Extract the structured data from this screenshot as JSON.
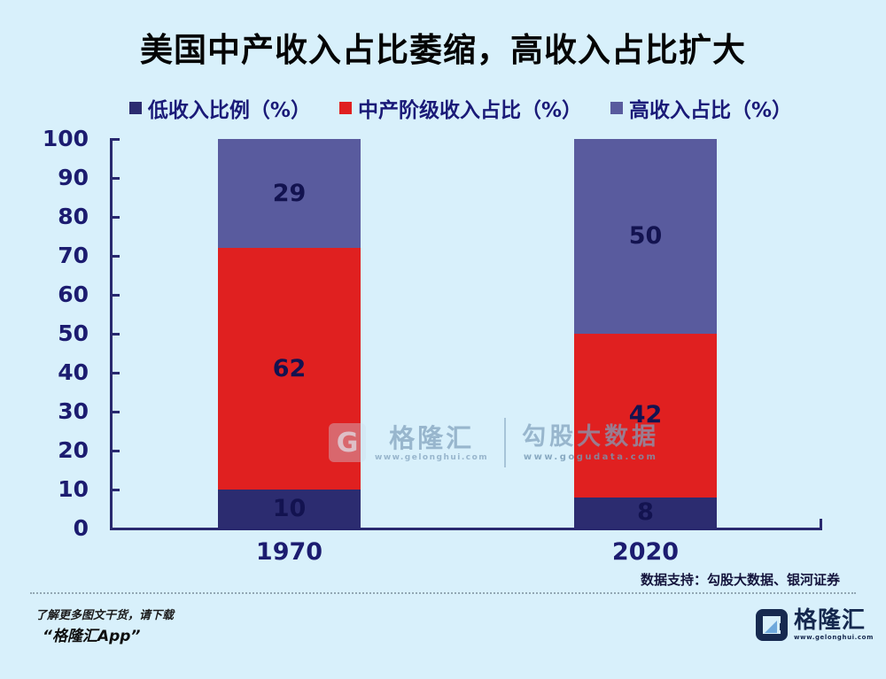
{
  "title": "美国中产收入占比萎缩，高收入占比扩大",
  "chart_data": {
    "type": "bar",
    "stacked": true,
    "title": "美国中产收入占比萎缩，高收入占比扩大",
    "categories": [
      "1970",
      "2020"
    ],
    "series": [
      {
        "name": "低收入比例（%）",
        "color": "#2c2c70",
        "values": [
          10,
          8
        ]
      },
      {
        "name": "中产阶级收入占比（%）",
        "color": "#e02020",
        "values": [
          62,
          42
        ]
      },
      {
        "name": "高收入占比（%）",
        "color": "#595b9e",
        "values": [
          29,
          50
        ]
      }
    ],
    "ylim": [
      0,
      100
    ],
    "yticks": [
      0,
      10,
      20,
      30,
      40,
      50,
      60,
      70,
      80,
      90,
      100
    ],
    "legend_position": "top",
    "grid": false,
    "value_label_color": "#131350",
    "axis_color": "#29296f",
    "background_color": "#d8f0fb"
  },
  "watermark": {
    "logo_letter": "G",
    "brand": "格隆汇",
    "brand_url": "www.gelonghui.com",
    "partner": "勾股大数据",
    "partner_url": "www.gogudata.com"
  },
  "footer": {
    "source_note": "数据支持：勾股大数据、银河证券",
    "promo_line1": "了解更多图文干货，请下载",
    "promo_line2": "“格隆汇App”",
    "logo_text": "格隆汇",
    "logo_url": "www.gelonghui.com"
  }
}
